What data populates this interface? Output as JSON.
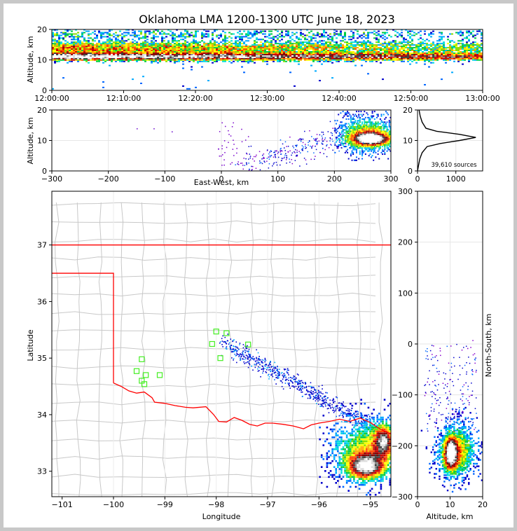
{
  "chart_data": [
    {
      "type": "heatmap",
      "panel": "altitude-time",
      "title": "Oklahoma LMA 1200-1300 UTC June 18, 2023",
      "xlabel": "",
      "ylabel": "Altitude, km",
      "xticks": [
        "12:00:00",
        "12:10:00",
        "12:20:00",
        "12:30:00",
        "12:40:00",
        "12:50:00",
        "13:00:00"
      ],
      "yticks": [
        "0",
        "10",
        "20"
      ],
      "ylim": [
        0,
        20
      ],
      "band_center_km": 11,
      "band_upper_km": 14
    },
    {
      "type": "heatmap",
      "panel": "altitude-east-west",
      "xlabel": "East-West, km",
      "ylabel": "Altitude, km",
      "xticks": [
        "−300",
        "−200",
        "−100",
        "0",
        "100",
        "200",
        "300"
      ],
      "yticks": [
        "0",
        "10",
        "20"
      ],
      "xlim": [
        -300,
        300
      ],
      "ylim": [
        0,
        20
      ],
      "core_x_km": [
        220,
        300
      ]
    },
    {
      "type": "line",
      "panel": "altitude-histogram",
      "annotation": "39,610 sources",
      "xticks": [
        "0",
        "1000"
      ],
      "yticks": [
        "0",
        "10",
        "20"
      ],
      "xlim": [
        0,
        1700
      ],
      "ylim": [
        0,
        20
      ],
      "profile": [
        [
          0,
          0
        ],
        [
          30,
          2
        ],
        [
          60,
          4
        ],
        [
          120,
          6
        ],
        [
          250,
          8
        ],
        [
          600,
          9
        ],
        [
          1100,
          10
        ],
        [
          1520,
          11
        ],
        [
          1100,
          12
        ],
        [
          500,
          13
        ],
        [
          220,
          14
        ],
        [
          120,
          16
        ],
        [
          70,
          18
        ],
        [
          40,
          20
        ]
      ]
    },
    {
      "type": "heatmap",
      "panel": "plan-view",
      "xlabel": "Longitude",
      "ylabel": "Latitude",
      "xticks": [
        "−101",
        "−100",
        "−99",
        "−98",
        "−97",
        "−96",
        "−95"
      ],
      "yticks": [
        "33",
        "34",
        "35",
        "36",
        "37"
      ],
      "xlim": [
        -101.2,
        -94.6
      ],
      "ylim": [
        32.55,
        37.95
      ],
      "stations": [
        [
          -98.0,
          35.47
        ],
        [
          -97.8,
          35.44
        ],
        [
          -98.08,
          35.25
        ],
        [
          -97.92,
          35.0
        ],
        [
          -97.38,
          35.24
        ],
        [
          -99.45,
          34.98
        ],
        [
          -99.55,
          34.77
        ],
        [
          -99.37,
          34.7
        ],
        [
          -99.45,
          34.6
        ],
        [
          -99.4,
          34.54
        ],
        [
          -99.1,
          34.7
        ]
      ],
      "storm_core": [
        -95.1,
        33.1
      ]
    },
    {
      "type": "heatmap",
      "panel": "altitude-north-south",
      "xlabel": "Altitude, km",
      "ylabel": "North-South, km",
      "xticks": [
        "0",
        "10",
        "20"
      ],
      "yticks": [
        "−300",
        "−200",
        "−100",
        "0",
        "100",
        "200",
        "300"
      ],
      "xlim": [
        0,
        20
      ],
      "ylim": [
        -300,
        300
      ]
    }
  ],
  "colors": {
    "state_border": "#ff0000",
    "county_lines": "#c8c8c8",
    "stations": "#44ee22",
    "frame_background": "#c8c8c8"
  }
}
